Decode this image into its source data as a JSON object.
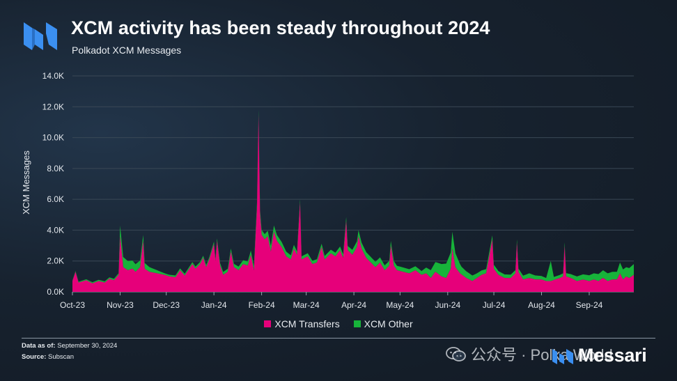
{
  "header": {
    "title": "XCM activity has been steady throughout 2024",
    "subtitle": "Polkadot XCM Messages"
  },
  "footer": {
    "data_as_of_label": "Data as of:",
    "data_as_of_value": "September 30, 2024",
    "source_label": "Source:",
    "source_value": "Subscan"
  },
  "watermark": {
    "text": "公众号 · Polka World"
  },
  "brand": {
    "name": "Messari"
  },
  "colors": {
    "transfers": "#e6007a",
    "other": "#17b33a",
    "accent_logo": "#3b8ff0"
  },
  "chart_data": {
    "type": "area",
    "stacked": true,
    "ylabel": "XCM Messages",
    "ylim": [
      0,
      14000
    ],
    "yticks": [
      0,
      2000,
      4000,
      6000,
      8000,
      10000,
      12000,
      14000
    ],
    "ytick_labels": [
      "0.0K",
      "2.0K",
      "4.0K",
      "6.0K",
      "8.0K",
      "10.0K",
      "12.0K",
      "14.0K"
    ],
    "xlim": [
      "2023-10-01",
      "2024-09-30"
    ],
    "xtick_labels": [
      "Oct-23",
      "Nov-23",
      "Dec-23",
      "Jan-24",
      "Feb-24",
      "Mar-24",
      "Apr-24",
      "May-24",
      "Jun-24",
      "Jul-24",
      "Aug-24",
      "Sep-24"
    ],
    "xtick_dates": [
      "2023-10-01",
      "2023-11-01",
      "2023-12-01",
      "2024-01-01",
      "2024-02-01",
      "2024-03-01",
      "2024-04-01",
      "2024-05-01",
      "2024-06-01",
      "2024-07-01",
      "2024-08-01",
      "2024-09-01"
    ],
    "legend": {
      "placement": "bottom-center"
    },
    "grid": true,
    "series": [
      {
        "name": "XCM Transfers",
        "color": "#e6007a",
        "points": [
          [
            "2023-10-01",
            700
          ],
          [
            "2023-10-03",
            1300
          ],
          [
            "2023-10-05",
            600
          ],
          [
            "2023-10-10",
            750
          ],
          [
            "2023-10-14",
            550
          ],
          [
            "2023-10-18",
            700
          ],
          [
            "2023-10-22",
            600
          ],
          [
            "2023-10-25",
            850
          ],
          [
            "2023-10-28",
            750
          ],
          [
            "2023-10-31",
            1100
          ],
          [
            "2023-11-01",
            3600
          ],
          [
            "2023-11-03",
            1600
          ],
          [
            "2023-11-06",
            1400
          ],
          [
            "2023-11-09",
            1500
          ],
          [
            "2023-11-11",
            1300
          ],
          [
            "2023-11-14",
            1600
          ],
          [
            "2023-11-16",
            3300
          ],
          [
            "2023-11-17",
            1500
          ],
          [
            "2023-11-20",
            1300
          ],
          [
            "2023-11-25",
            1200
          ],
          [
            "2023-11-30",
            1100
          ],
          [
            "2023-12-03",
            1000
          ],
          [
            "2023-12-07",
            950
          ],
          [
            "2023-12-10",
            1400
          ],
          [
            "2023-12-13",
            1050
          ],
          [
            "2023-12-16",
            1500
          ],
          [
            "2023-12-18",
            1800
          ],
          [
            "2023-12-20",
            1500
          ],
          [
            "2023-12-23",
            1800
          ],
          [
            "2023-12-25",
            2200
          ],
          [
            "2023-12-27",
            1600
          ],
          [
            "2023-12-29",
            2100
          ],
          [
            "2024-01-01",
            3100
          ],
          [
            "2024-01-02",
            2000
          ],
          [
            "2024-01-03",
            3300
          ],
          [
            "2024-01-05",
            1700
          ],
          [
            "2024-01-07",
            1100
          ],
          [
            "2024-01-10",
            1300
          ],
          [
            "2024-01-12",
            2600
          ],
          [
            "2024-01-14",
            1600
          ],
          [
            "2024-01-17",
            1400
          ],
          [
            "2024-01-20",
            1800
          ],
          [
            "2024-01-23",
            1700
          ],
          [
            "2024-01-25",
            2400
          ],
          [
            "2024-01-27",
            1400
          ],
          [
            "2024-01-28",
            3500
          ],
          [
            "2024-01-29",
            5500
          ],
          [
            "2024-01-30",
            11500
          ],
          [
            "2024-01-31",
            5000
          ],
          [
            "2024-02-01",
            3700
          ],
          [
            "2024-02-03",
            3400
          ],
          [
            "2024-02-05",
            3600
          ],
          [
            "2024-02-07",
            2600
          ],
          [
            "2024-02-09",
            3900
          ],
          [
            "2024-02-11",
            3300
          ],
          [
            "2024-02-14",
            2900
          ],
          [
            "2024-02-17",
            2300
          ],
          [
            "2024-02-20",
            2100
          ],
          [
            "2024-02-22",
            2800
          ],
          [
            "2024-02-24",
            2400
          ],
          [
            "2024-02-26",
            5800
          ],
          [
            "2024-02-27",
            2100
          ],
          [
            "2024-03-02",
            2300
          ],
          [
            "2024-03-05",
            1800
          ],
          [
            "2024-03-08",
            1900
          ],
          [
            "2024-03-11",
            2900
          ],
          [
            "2024-03-13",
            2100
          ],
          [
            "2024-03-17",
            2500
          ],
          [
            "2024-03-20",
            2300
          ],
          [
            "2024-03-23",
            2700
          ],
          [
            "2024-03-25",
            2200
          ],
          [
            "2024-03-27",
            4600
          ],
          [
            "2024-03-28",
            2700
          ],
          [
            "2024-03-31",
            2400
          ],
          [
            "2024-04-03",
            2900
          ],
          [
            "2024-04-04",
            3600
          ],
          [
            "2024-04-06",
            2800
          ],
          [
            "2024-04-09",
            2200
          ],
          [
            "2024-04-12",
            1900
          ],
          [
            "2024-04-15",
            1600
          ],
          [
            "2024-04-18",
            1900
          ],
          [
            "2024-04-21",
            1400
          ],
          [
            "2024-04-24",
            1700
          ],
          [
            "2024-04-25",
            3000
          ],
          [
            "2024-04-27",
            1700
          ],
          [
            "2024-04-29",
            1400
          ],
          [
            "2024-05-03",
            1300
          ],
          [
            "2024-05-07",
            1200
          ],
          [
            "2024-05-11",
            1400
          ],
          [
            "2024-05-15",
            1100
          ],
          [
            "2024-05-18",
            1200
          ],
          [
            "2024-05-21",
            900
          ],
          [
            "2024-05-24",
            1300
          ],
          [
            "2024-05-28",
            1000
          ],
          [
            "2024-05-31",
            900
          ],
          [
            "2024-06-03",
            1500
          ],
          [
            "2024-06-04",
            2800
          ],
          [
            "2024-06-06",
            1600
          ],
          [
            "2024-06-09",
            1200
          ],
          [
            "2024-06-13",
            900
          ],
          [
            "2024-06-17",
            700
          ],
          [
            "2024-06-20",
            900
          ],
          [
            "2024-06-23",
            1100
          ],
          [
            "2024-06-26",
            1200
          ],
          [
            "2024-06-30",
            3400
          ],
          [
            "2024-07-01",
            1500
          ],
          [
            "2024-07-04",
            1100
          ],
          [
            "2024-07-08",
            900
          ],
          [
            "2024-07-12",
            900
          ],
          [
            "2024-07-15",
            1200
          ],
          [
            "2024-07-16",
            3200
          ],
          [
            "2024-07-17",
            1300
          ],
          [
            "2024-07-20",
            800
          ],
          [
            "2024-07-24",
            900
          ],
          [
            "2024-07-28",
            800
          ],
          [
            "2024-08-01",
            800
          ],
          [
            "2024-08-04",
            700
          ],
          [
            "2024-08-07",
            700
          ],
          [
            "2024-08-10",
            800
          ],
          [
            "2024-08-13",
            900
          ],
          [
            "2024-08-15",
            1000
          ],
          [
            "2024-08-16",
            3000
          ],
          [
            "2024-08-17",
            1000
          ],
          [
            "2024-08-20",
            900
          ],
          [
            "2024-08-24",
            700
          ],
          [
            "2024-08-28",
            800
          ],
          [
            "2024-09-01",
            700
          ],
          [
            "2024-09-04",
            800
          ],
          [
            "2024-09-07",
            700
          ],
          [
            "2024-09-10",
            900
          ],
          [
            "2024-09-13",
            700
          ],
          [
            "2024-09-16",
            800
          ],
          [
            "2024-09-19",
            800
          ],
          [
            "2024-09-21",
            1200
          ],
          [
            "2024-09-23",
            800
          ],
          [
            "2024-09-25",
            1000
          ],
          [
            "2024-09-27",
            900
          ],
          [
            "2024-09-30",
            1100
          ]
        ]
      },
      {
        "name": "XCM Other",
        "color": "#17b33a",
        "points": [
          [
            "2023-10-01",
            50
          ],
          [
            "2023-10-31",
            100
          ],
          [
            "2023-11-01",
            700
          ],
          [
            "2023-11-30",
            100
          ],
          [
            "2023-12-31",
            150
          ],
          [
            "2024-01-30",
            300
          ],
          [
            "2024-02-09",
            400
          ],
          [
            "2024-02-26",
            200
          ],
          [
            "2024-03-27",
            250
          ],
          [
            "2024-04-04",
            400
          ],
          [
            "2024-04-25",
            300
          ],
          [
            "2024-05-15",
            250
          ],
          [
            "2024-06-04",
            1100
          ],
          [
            "2024-06-10",
            500
          ],
          [
            "2024-06-20",
            300
          ],
          [
            "2024-07-16",
            200
          ],
          [
            "2024-07-24",
            300
          ],
          [
            "2024-08-04",
            200
          ],
          [
            "2024-08-07",
            1300
          ],
          [
            "2024-08-09",
            200
          ],
          [
            "2024-08-16",
            200
          ],
          [
            "2024-08-24",
            300
          ],
          [
            "2024-09-04",
            400
          ],
          [
            "2024-09-10",
            500
          ],
          [
            "2024-09-19",
            500
          ],
          [
            "2024-09-21",
            700
          ],
          [
            "2024-09-25",
            600
          ],
          [
            "2024-09-30",
            700
          ]
        ]
      }
    ]
  }
}
